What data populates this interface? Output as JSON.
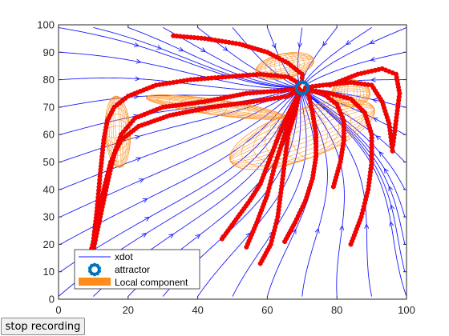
{
  "chart_data": {
    "type": "scatter",
    "title": "",
    "xlabel": "",
    "ylabel": "",
    "xlim": [
      0,
      100
    ],
    "ylim": [
      0,
      100
    ],
    "xticks": [
      "0",
      "20",
      "40",
      "60",
      "80",
      "100"
    ],
    "yticks": [
      "0",
      "10",
      "20",
      "30",
      "40",
      "50",
      "60",
      "70",
      "80",
      "90",
      "100"
    ],
    "grid": false,
    "legend_position": "bottom-left",
    "legend": [
      "xdot",
      "attractor",
      "Local component"
    ],
    "colors": {
      "stream": "#1a1aff",
      "points": "#ff0000",
      "ellipse": "#ff8c1a",
      "attractor": "#0072bd"
    },
    "attractor": {
      "x": 70,
      "y": 77
    },
    "components": [
      {
        "cx": 17,
        "cy": 61,
        "rx": 3.6,
        "ry": 13,
        "angle": -3
      },
      {
        "cx": 65,
        "cy": 85,
        "rx": 8.5,
        "ry": 4.5,
        "angle": -12
      },
      {
        "cx": 84,
        "cy": 75,
        "rx": 5.5,
        "ry": 5,
        "angle": 0
      },
      {
        "cx": 45,
        "cy": 70,
        "rx": 20,
        "ry": 2.8,
        "angle": 8
      },
      {
        "cx": 70,
        "cy": 60,
        "rx": 22,
        "ry": 9,
        "angle": -20
      }
    ],
    "trajectories": [
      [
        [
          10,
          21
        ],
        [
          11,
          32
        ],
        [
          12,
          46
        ],
        [
          13,
          58
        ],
        [
          14,
          65
        ],
        [
          16,
          70
        ],
        [
          20,
          74
        ],
        [
          28,
          78
        ],
        [
          38,
          80
        ],
        [
          48,
          81
        ],
        [
          58,
          82
        ],
        [
          66,
          81
        ],
        [
          70,
          78
        ]
      ],
      [
        [
          10,
          18
        ],
        [
          12,
          30
        ],
        [
          14,
          42
        ],
        [
          16,
          53
        ],
        [
          18,
          60
        ],
        [
          22,
          66
        ],
        [
          30,
          70
        ],
        [
          42,
          72
        ],
        [
          54,
          75
        ],
        [
          64,
          76
        ],
        [
          70,
          77
        ]
      ],
      [
        [
          9,
          16
        ],
        [
          11,
          26
        ],
        [
          13,
          40
        ],
        [
          15,
          50
        ],
        [
          18,
          58
        ],
        [
          23,
          63
        ],
        [
          32,
          67
        ],
        [
          44,
          70
        ],
        [
          56,
          72
        ],
        [
          66,
          74
        ],
        [
          70,
          77
        ]
      ],
      [
        [
          33,
          96
        ],
        [
          42,
          95
        ],
        [
          52,
          93
        ],
        [
          60,
          90
        ],
        [
          66,
          86
        ],
        [
          70,
          82
        ],
        [
          70,
          78
        ]
      ],
      [
        [
          58,
          13
        ],
        [
          61,
          20
        ],
        [
          63,
          30
        ],
        [
          64,
          40
        ],
        [
          65,
          50
        ],
        [
          66,
          60
        ],
        [
          68,
          68
        ],
        [
          69,
          74
        ],
        [
          70,
          77
        ]
      ],
      [
        [
          54,
          19
        ],
        [
          57,
          28
        ],
        [
          60,
          38
        ],
        [
          62,
          48
        ],
        [
          64,
          56
        ],
        [
          66,
          64
        ],
        [
          68,
          71
        ],
        [
          70,
          77
        ]
      ],
      [
        [
          47,
          22
        ],
        [
          51,
          29
        ],
        [
          55,
          36
        ],
        [
          58,
          42
        ],
        [
          61,
          52
        ],
        [
          64,
          62
        ],
        [
          67,
          70
        ],
        [
          70,
          77
        ]
      ],
      [
        [
          65,
          21
        ],
        [
          68,
          28
        ],
        [
          71,
          36
        ],
        [
          73,
          44
        ],
        [
          74,
          52
        ],
        [
          74,
          60
        ],
        [
          73,
          68
        ],
        [
          72,
          74
        ],
        [
          70,
          77
        ]
      ],
      [
        [
          84,
          20
        ],
        [
          87,
          30
        ],
        [
          89,
          40
        ],
        [
          90,
          50
        ],
        [
          90,
          60
        ],
        [
          88,
          68
        ],
        [
          84,
          73
        ],
        [
          78,
          75
        ],
        [
          73,
          76
        ],
        [
          70,
          77
        ]
      ],
      [
        [
          96,
          54
        ],
        [
          95,
          64
        ],
        [
          93,
          72
        ],
        [
          90,
          78
        ],
        [
          84,
          79
        ],
        [
          76,
          78
        ],
        [
          70,
          77
        ]
      ],
      [
        [
          79,
          41
        ],
        [
          81,
          50
        ],
        [
          82,
          58
        ],
        [
          82,
          65
        ],
        [
          80,
          71
        ],
        [
          76,
          75
        ],
        [
          72,
          76
        ],
        [
          70,
          77
        ]
      ],
      [
        [
          78,
          78
        ],
        [
          86,
          82
        ],
        [
          93,
          84
        ],
        [
          97,
          82
        ],
        [
          98,
          75
        ],
        [
          97,
          65
        ],
        [
          96,
          55
        ]
      ]
    ]
  },
  "ui": {
    "stop_button_label": "stop recording"
  }
}
